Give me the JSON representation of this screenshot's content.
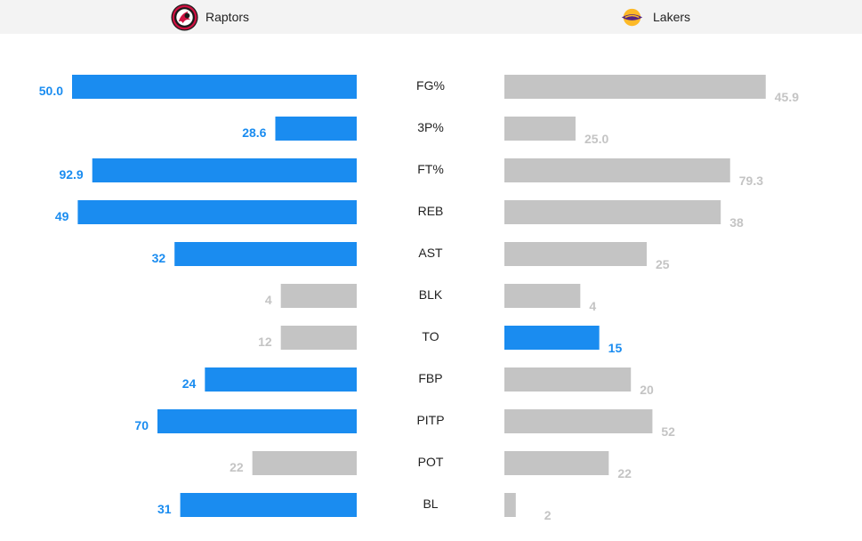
{
  "header": {
    "home_team": "Raptors",
    "away_team": "Lakers"
  },
  "colors": {
    "leader": "#1a8cf0",
    "trailer": "#c4c4c4",
    "leader_text": "#1a8cf0",
    "trailer_text": "#c4c4c4",
    "header_bg": "#f3f3f3"
  },
  "icons": {
    "home_logo": "raptors-logo-icon",
    "away_logo": "lakers-logo-icon"
  },
  "chart_data": {
    "type": "bar",
    "orientation": "horizontal-mirrored",
    "categories": [
      "FG%",
      "3P%",
      "FT%",
      "REB",
      "AST",
      "BLK",
      "TO",
      "FBP",
      "PITP",
      "POT",
      "BL"
    ],
    "series": [
      {
        "name": "Raptors",
        "values": [
          50.0,
          28.6,
          92.9,
          49,
          32,
          4,
          12,
          24,
          70,
          22,
          31
        ],
        "labels": [
          "50.0",
          "28.6",
          "92.9",
          "49",
          "32",
          "4",
          "12",
          "24",
          "70",
          "22",
          "31"
        ],
        "leader": [
          true,
          true,
          true,
          true,
          true,
          false,
          false,
          true,
          true,
          false,
          true
        ]
      },
      {
        "name": "Lakers",
        "values": [
          45.9,
          25.0,
          79.3,
          38,
          25,
          4,
          15,
          20,
          52,
          22,
          2
        ],
        "labels": [
          "45.9",
          "25.0",
          "79.3",
          "38",
          "25",
          "4",
          "15",
          "20",
          "52",
          "22",
          "2"
        ],
        "leader": [
          false,
          false,
          false,
          false,
          false,
          false,
          true,
          false,
          false,
          false,
          false
        ]
      }
    ],
    "scale_max": [
      50,
      100,
      100,
      50,
      50,
      15,
      45,
      45,
      100,
      60,
      50
    ],
    "grid": false,
    "legend": "top"
  }
}
